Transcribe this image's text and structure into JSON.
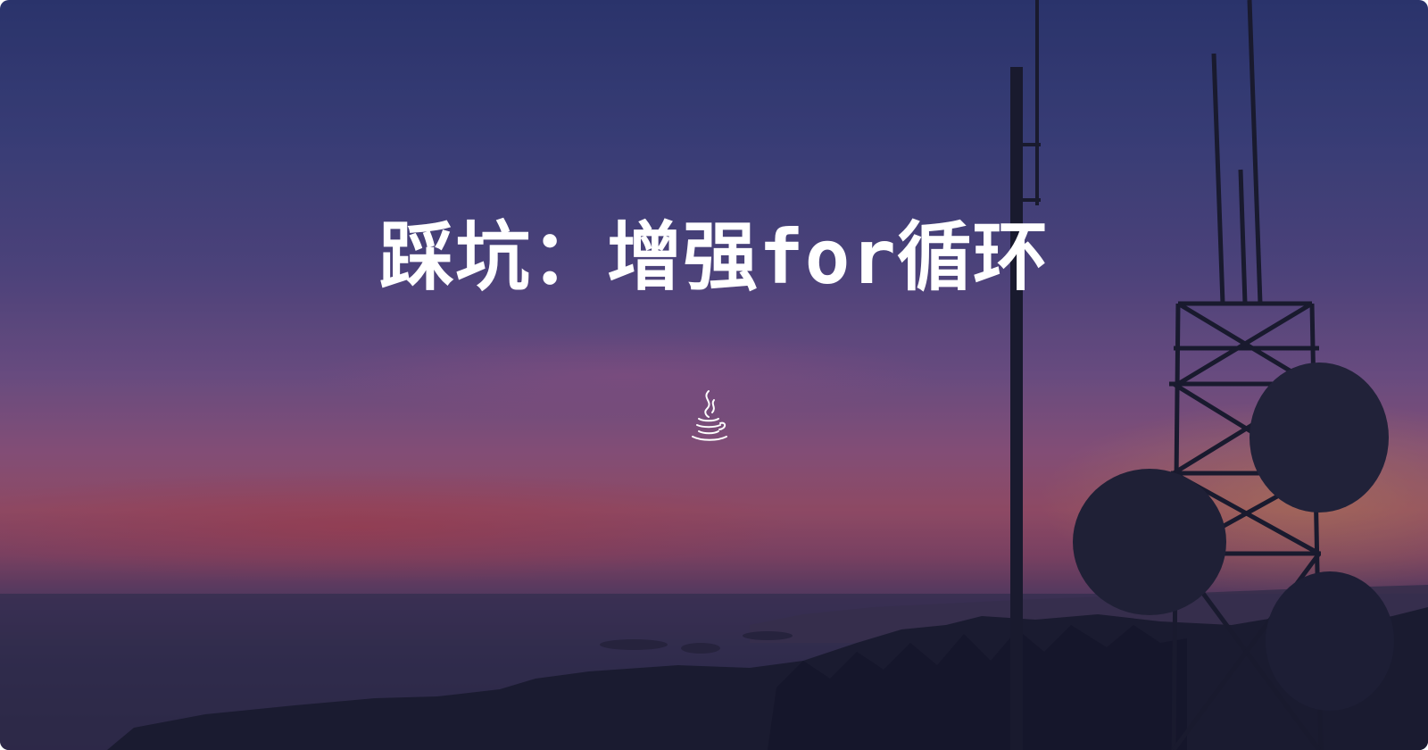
{
  "title": "踩坑：增强for循环",
  "icon": "java-coffee-cup-icon",
  "colors": {
    "title": "#ffffff",
    "sky_top": "#2f3a78",
    "sky_mid": "#7a5790",
    "sky_horizon": "#a8556f",
    "land": "#1c1d30"
  }
}
